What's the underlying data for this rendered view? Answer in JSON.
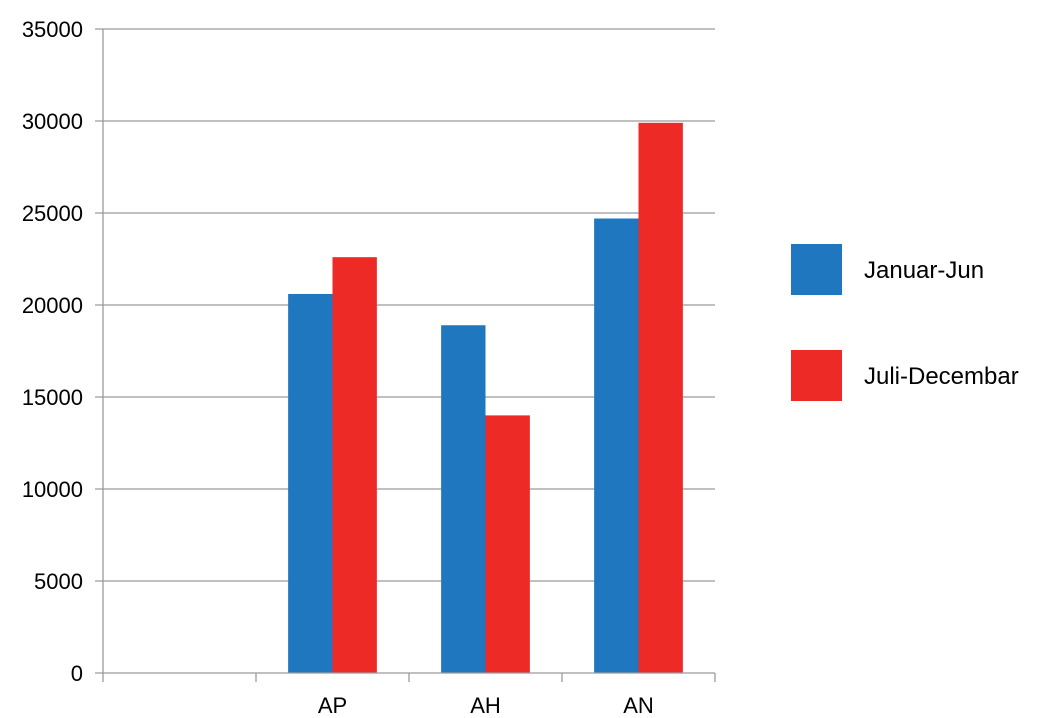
{
  "chart_data": {
    "type": "bar",
    "title": "",
    "xlabel": "",
    "ylabel": "",
    "categories": [
      "",
      "AP",
      "AH",
      "AN"
    ],
    "ylim": [
      0,
      35000
    ],
    "yticks": [
      0,
      5000,
      10000,
      15000,
      20000,
      25000,
      30000,
      35000
    ],
    "grid": true,
    "legend_position": "right",
    "series": [
      {
        "name": "Januar-Jun",
        "color": "#1f77c0",
        "values": [
          null,
          20600,
          18900,
          24700
        ]
      },
      {
        "name": "Juli-Decembar",
        "color": "#ee2a27",
        "values": [
          null,
          22600,
          14000,
          29900
        ]
      }
    ]
  }
}
